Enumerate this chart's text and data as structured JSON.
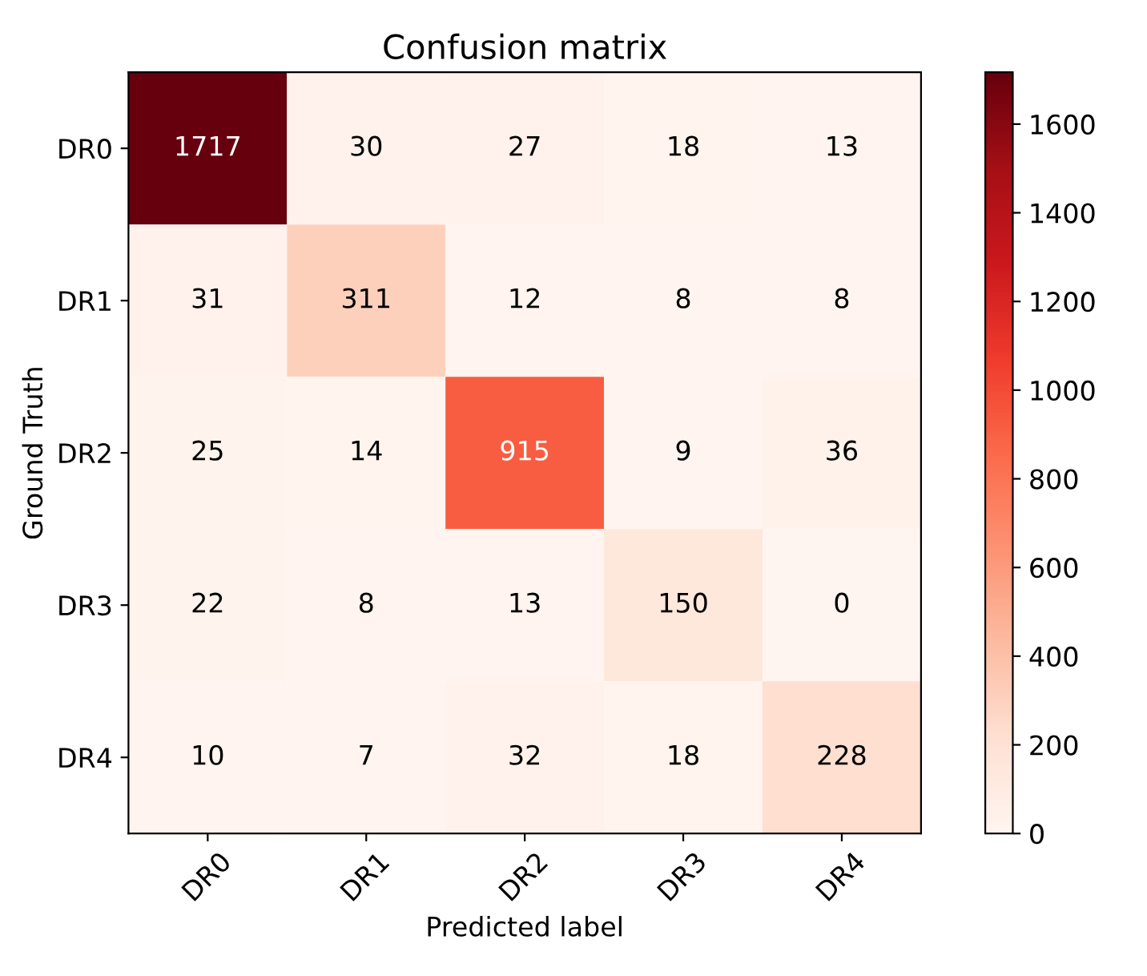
{
  "chart_data": {
    "type": "heatmap",
    "title": "Confusion matrix",
    "xlabel": "Predicted label",
    "ylabel": "Ground Truth",
    "categories": [
      "DR0",
      "DR1",
      "DR2",
      "DR3",
      "DR4"
    ],
    "y_categories": [
      "DR0",
      "DR1",
      "DR2",
      "DR3",
      "DR4"
    ],
    "cells": [
      [
        1717,
        30,
        27,
        18,
        13
      ],
      [
        31,
        311,
        12,
        8,
        8
      ],
      [
        25,
        14,
        915,
        9,
        36
      ],
      [
        22,
        8,
        13,
        150,
        0
      ],
      [
        10,
        7,
        32,
        18,
        228
      ]
    ],
    "data_labels": true,
    "clim": [
      0,
      1717
    ],
    "cticks": [
      0,
      200,
      400,
      600,
      800,
      1000,
      1200,
      1400,
      1600
    ]
  }
}
